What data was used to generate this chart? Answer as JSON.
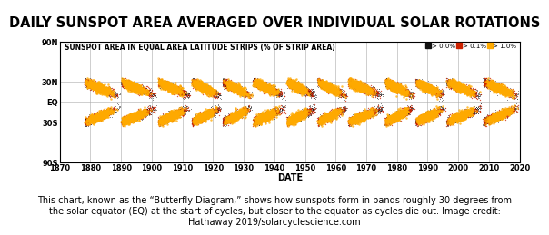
{
  "title": "DAILY SUNSPOT AREA AVERAGED OVER INDIVIDUAL SOLAR ROTATIONS",
  "subtitle": "SUNSPOT AREA IN EQUAL AREA LATITUDE STRIPS (% OF STRIP AREA)",
  "xlabel": "DATE",
  "ylabel_ticks": [
    "90N",
    "30N",
    "EQ",
    "30S",
    "90S"
  ],
  "ylabel_vals": [
    90,
    30,
    0,
    -30,
    -90
  ],
  "xticks": [
    1870,
    1880,
    1890,
    1900,
    1910,
    1920,
    1930,
    1940,
    1950,
    1960,
    1970,
    1980,
    1990,
    2000,
    2010,
    2020
  ],
  "xmin": 1870,
  "xmax": 2020,
  "ymin": -90,
  "ymax": 90,
  "solar_cycles": [
    {
      "start": 1878,
      "end": 1890,
      "peak": 1883
    },
    {
      "start": 1890,
      "end": 1902,
      "peak": 1894
    },
    {
      "start": 1902,
      "end": 1913,
      "peak": 1906
    },
    {
      "start": 1913,
      "end": 1923,
      "peak": 1917
    },
    {
      "start": 1923,
      "end": 1933,
      "peak": 1928
    },
    {
      "start": 1933,
      "end": 1944,
      "peak": 1937
    },
    {
      "start": 1944,
      "end": 1954,
      "peak": 1947
    },
    {
      "start": 1954,
      "end": 1964,
      "peak": 1958
    },
    {
      "start": 1964,
      "end": 1976,
      "peak": 1968
    },
    {
      "start": 1976,
      "end": 1986,
      "peak": 1980
    },
    {
      "start": 1986,
      "end": 1996,
      "peak": 1990
    },
    {
      "start": 1996,
      "end": 2008,
      "peak": 2001
    },
    {
      "start": 2008,
      "end": 2020,
      "peak": 2014
    }
  ],
  "legend_labels": [
    "> 0.0%",
    "> 0.1%",
    "> 1.0%"
  ],
  "legend_colors": [
    "#111111",
    "#cc2200",
    "#ffaa00"
  ],
  "bg_color": "#ffffff",
  "plot_bg": "#ffffff",
  "grid_color": "#aaaaaa",
  "title_fontsize": 10.5,
  "subtitle_fontsize": 5.5,
  "caption": "This chart, known as the “Butterfly Diagram,” shows how sunspots form in bands roughly 30 degrees from\nthe solar equator (EQ) at the start of cycles, but closer to the equator as cycles die out. Image credit:\nHathaway 2019/solarcyclescience.com",
  "caption_fontsize": 7.0
}
